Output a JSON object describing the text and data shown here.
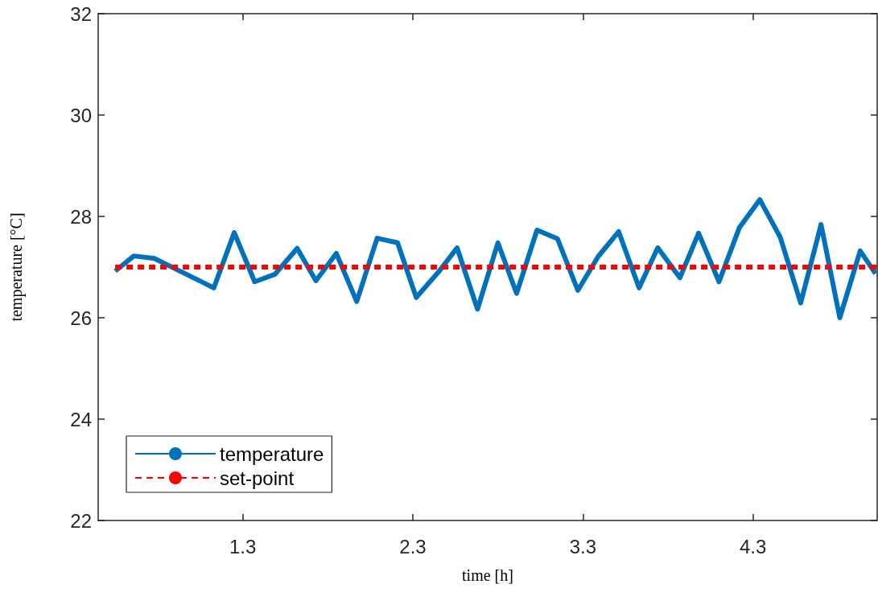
{
  "chart_data": {
    "type": "line",
    "xlabel": "time [h]",
    "ylabel": "temperature [°C]",
    "xlim": [
      0.45,
      5.03
    ],
    "xticks": [
      1.3,
      2.3,
      3.3,
      4.3
    ],
    "ylim": [
      22,
      32
    ],
    "yticks": [
      22,
      24,
      26,
      28,
      30,
      32
    ],
    "grid": false,
    "legend": "bottom left",
    "marker": "none",
    "series": [
      {
        "name": "temperature",
        "color": "#0072bd",
        "line_style": "solid",
        "x": [
          0.55,
          0.66,
          0.78,
          1.13,
          1.25,
          1.37,
          1.49,
          1.62,
          1.73,
          1.85,
          1.97,
          2.09,
          2.21,
          2.32,
          2.45,
          2.56,
          2.68,
          2.8,
          2.91,
          3.03,
          3.15,
          3.27,
          3.39,
          3.51,
          3.63,
          3.74,
          3.87,
          3.98,
          4.1,
          4.22,
          4.34,
          4.46,
          4.58,
          4.7,
          4.81,
          4.93,
          5.02
        ],
        "values": [
          26.92,
          27.22,
          27.17,
          26.59,
          27.68,
          26.71,
          26.86,
          27.37,
          26.73,
          27.27,
          26.32,
          27.57,
          27.48,
          26.4,
          26.9,
          27.38,
          26.17,
          27.48,
          26.48,
          27.73,
          27.56,
          26.54,
          27.21,
          27.7,
          26.59,
          27.38,
          26.79,
          27.67,
          26.71,
          27.78,
          28.33,
          27.59,
          26.29,
          27.84,
          26.0,
          27.32,
          26.87
        ]
      },
      {
        "name": "set-point",
        "color": "#ff0000",
        "line_style": "dashed",
        "x": [
          0.55,
          5.03
        ],
        "values": [
          27,
          27
        ]
      }
    ]
  }
}
